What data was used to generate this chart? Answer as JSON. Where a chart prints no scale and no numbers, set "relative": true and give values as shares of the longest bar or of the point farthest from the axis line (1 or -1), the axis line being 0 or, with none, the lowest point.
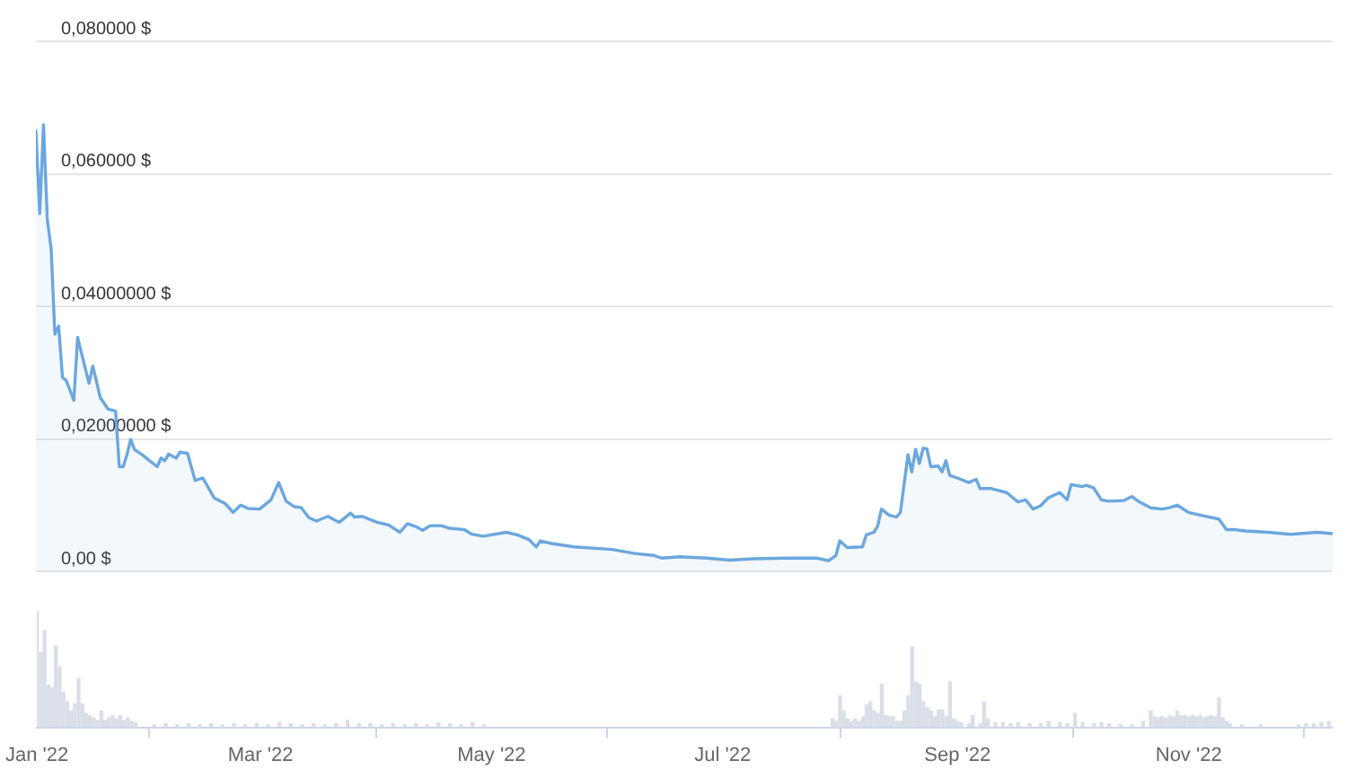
{
  "chart_data": [
    {
      "type": "area",
      "color": "#6ba7de",
      "x": [
        "2022-01-01",
        "2022-01-02",
        "2022-01-03",
        "2022-01-04",
        "2022-01-05",
        "2022-01-06",
        "2022-01-07",
        "2022-01-08",
        "2022-01-09",
        "2022-01-11",
        "2022-01-12",
        "2022-01-15",
        "2022-01-16",
        "2022-01-18",
        "2022-01-20",
        "2022-01-22",
        "2022-01-23",
        "2022-01-24",
        "2022-01-25",
        "2022-01-26",
        "2022-01-27",
        "2022-01-29",
        "2022-02-02",
        "2022-02-03",
        "2022-02-04",
        "2022-02-05",
        "2022-02-07",
        "2022-02-08",
        "2022-02-10",
        "2022-02-12",
        "2022-02-14",
        "2022-02-17",
        "2022-02-20",
        "2022-02-22",
        "2022-02-24",
        "2022-02-26",
        "2022-03-01",
        "2022-03-04",
        "2022-03-06",
        "2022-03-08",
        "2022-03-10",
        "2022-03-12",
        "2022-03-14",
        "2022-03-16",
        "2022-03-19",
        "2022-03-22",
        "2022-03-25",
        "2022-03-26",
        "2022-03-28",
        "2022-04-01",
        "2022-04-04",
        "2022-04-07",
        "2022-04-09",
        "2022-04-11",
        "2022-04-13",
        "2022-04-15",
        "2022-04-18",
        "2022-04-20",
        "2022-04-24",
        "2022-04-26",
        "2022-04-29",
        "2022-05-05",
        "2022-05-08",
        "2022-05-11",
        "2022-05-13",
        "2022-05-14",
        "2022-05-17",
        "2022-05-23",
        "2022-06-02",
        "2022-06-08",
        "2022-06-13",
        "2022-06-15",
        "2022-06-20",
        "2022-06-27",
        "2022-07-03",
        "2022-07-09",
        "2022-07-18",
        "2022-07-26",
        "2022-07-29",
        "2022-07-31",
        "2022-08-01",
        "2022-08-03",
        "2022-08-07",
        "2022-08-08",
        "2022-08-10",
        "2022-08-11",
        "2022-08-12",
        "2022-08-14",
        "2022-08-16",
        "2022-08-17",
        "2022-08-19",
        "2022-08-20",
        "2022-08-21",
        "2022-08-22",
        "2022-08-23",
        "2022-08-24",
        "2022-08-25",
        "2022-08-27",
        "2022-08-28",
        "2022-08-29",
        "2022-08-30",
        "2022-09-01",
        "2022-09-04",
        "2022-09-06",
        "2022-09-07",
        "2022-09-10",
        "2022-09-14",
        "2022-09-17",
        "2022-09-19",
        "2022-09-21",
        "2022-09-23",
        "2022-09-25",
        "2022-09-28",
        "2022-09-30",
        "2022-10-01",
        "2022-10-04",
        "2022-10-05",
        "2022-10-07",
        "2022-10-09",
        "2022-10-11",
        "2022-10-15",
        "2022-10-17",
        "2022-10-19",
        "2022-10-22",
        "2022-10-25",
        "2022-10-27",
        "2022-10-29",
        "2022-11-01",
        "2022-11-04",
        "2022-11-09",
        "2022-11-11",
        "2022-11-13",
        "2022-11-16",
        "2022-11-22",
        "2022-11-28",
        "2022-12-05",
        "2022-12-09"
      ],
      "values": [
        0.0665,
        0.054,
        0.0674,
        0.0531,
        0.0488,
        0.0358,
        0.037,
        0.0293,
        0.0288,
        0.0258,
        0.0353,
        0.0284,
        0.031,
        0.0262,
        0.0245,
        0.0242,
        0.0158,
        0.0158,
        0.0176,
        0.0199,
        0.0184,
        0.0176,
        0.0158,
        0.0171,
        0.0167,
        0.0177,
        0.0171,
        0.018,
        0.0178,
        0.0137,
        0.0141,
        0.0111,
        0.0102,
        0.0089,
        0.01,
        0.0095,
        0.0094,
        0.0108,
        0.0134,
        0.0106,
        0.0098,
        0.0096,
        0.0081,
        0.0076,
        0.0083,
        0.0074,
        0.0088,
        0.0082,
        0.0083,
        0.0074,
        0.007,
        0.0059,
        0.0072,
        0.0068,
        0.0062,
        0.0069,
        0.0069,
        0.0065,
        0.0063,
        0.0056,
        0.0053,
        0.0059,
        0.0055,
        0.0048,
        0.0037,
        0.0046,
        0.0042,
        0.0037,
        0.0033,
        0.0027,
        0.0024,
        0.002,
        0.0022,
        0.002,
        0.0017,
        0.0019,
        0.002,
        0.002,
        0.0016,
        0.0024,
        0.0046,
        0.0036,
        0.0037,
        0.0055,
        0.0059,
        0.0068,
        0.0094,
        0.0085,
        0.0082,
        0.0089,
        0.0176,
        0.015,
        0.0184,
        0.0163,
        0.0186,
        0.0185,
        0.0158,
        0.0159,
        0.015,
        0.0167,
        0.0145,
        0.0141,
        0.0134,
        0.0139,
        0.0125,
        0.0125,
        0.0119,
        0.0105,
        0.0108,
        0.0094,
        0.0099,
        0.0111,
        0.0119,
        0.0108,
        0.0131,
        0.0128,
        0.013,
        0.0126,
        0.0108,
        0.0106,
        0.0107,
        0.0113,
        0.0105,
        0.0096,
        0.0094,
        0.0096,
        0.01,
        0.0089,
        0.0085,
        0.0079,
        0.0063,
        0.0063,
        0.0061,
        0.0059,
        0.0056,
        0.0059,
        0.0057
      ],
      "xlim": [
        "2022-01-01",
        "2022-12-09"
      ],
      "ylim": [
        0,
        0.08
      ],
      "yticks": [
        {
          "value": 0,
          "label": "0,00 $"
        },
        {
          "value": 0.02,
          "label": "0,02000000 $"
        },
        {
          "value": 0.04,
          "label": "0,04000000 $"
        },
        {
          "value": 0.06,
          "label": "0,060000 $"
        },
        {
          "value": 0.08,
          "label": "0,080000 $"
        }
      ],
      "grid": "y",
      "tick_labels": "y"
    },
    {
      "type": "bar",
      "color": "#d9dee8",
      "relative": true,
      "x": [
        "2022-01-01",
        "2022-01-02",
        "2022-01-03",
        "2022-01-04",
        "2022-01-05",
        "2022-01-06",
        "2022-01-07",
        "2022-01-08",
        "2022-01-09",
        "2022-01-10",
        "2022-01-11",
        "2022-01-12",
        "2022-01-13",
        "2022-01-14",
        "2022-01-15",
        "2022-01-16",
        "2022-01-17",
        "2022-01-18",
        "2022-01-19",
        "2022-01-20",
        "2022-01-21",
        "2022-01-22",
        "2022-01-23",
        "2022-01-24",
        "2022-01-25",
        "2022-01-26",
        "2022-01-27",
        "2022-02-01",
        "2022-02-04",
        "2022-02-07",
        "2022-02-10",
        "2022-02-13",
        "2022-02-16",
        "2022-02-19",
        "2022-02-22",
        "2022-02-25",
        "2022-02-28",
        "2022-03-03",
        "2022-03-06",
        "2022-03-09",
        "2022-03-12",
        "2022-03-15",
        "2022-03-18",
        "2022-03-21",
        "2022-03-24",
        "2022-03-27",
        "2022-03-30",
        "2022-04-02",
        "2022-04-05",
        "2022-04-08",
        "2022-04-11",
        "2022-04-14",
        "2022-04-17",
        "2022-04-20",
        "2022-04-23",
        "2022-04-26",
        "2022-04-29",
        "2022-07-30",
        "2022-07-31",
        "2022-08-01",
        "2022-08-02",
        "2022-08-03",
        "2022-08-04",
        "2022-08-05",
        "2022-08-06",
        "2022-08-07",
        "2022-08-08",
        "2022-08-09",
        "2022-08-10",
        "2022-08-11",
        "2022-08-12",
        "2022-08-13",
        "2022-08-14",
        "2022-08-15",
        "2022-08-16",
        "2022-08-17",
        "2022-08-18",
        "2022-08-19",
        "2022-08-20",
        "2022-08-21",
        "2022-08-22",
        "2022-08-23",
        "2022-08-24",
        "2022-08-25",
        "2022-08-26",
        "2022-08-27",
        "2022-08-28",
        "2022-08-29",
        "2022-08-30",
        "2022-08-31",
        "2022-09-01",
        "2022-09-02",
        "2022-09-04",
        "2022-09-05",
        "2022-09-07",
        "2022-09-08",
        "2022-09-09",
        "2022-09-11",
        "2022-09-13",
        "2022-09-15",
        "2022-09-17",
        "2022-09-20",
        "2022-09-23",
        "2022-09-25",
        "2022-09-28",
        "2022-09-30",
        "2022-10-02",
        "2022-10-04",
        "2022-10-07",
        "2022-10-09",
        "2022-10-11",
        "2022-10-14",
        "2022-10-17",
        "2022-10-20",
        "2022-10-22",
        "2022-10-23",
        "2022-10-24",
        "2022-10-25",
        "2022-10-26",
        "2022-10-27",
        "2022-10-28",
        "2022-10-29",
        "2022-10-30",
        "2022-10-31",
        "2022-11-01",
        "2022-11-02",
        "2022-11-03",
        "2022-11-04",
        "2022-11-05",
        "2022-11-06",
        "2022-11-07",
        "2022-11-08",
        "2022-11-09",
        "2022-11-10",
        "2022-11-11",
        "2022-11-12",
        "2022-11-15",
        "2022-11-20",
        "2022-11-30",
        "2022-12-02",
        "2022-12-04",
        "2022-12-06",
        "2022-12-08"
      ],
      "values": [
        1.0,
        0.64,
        0.83,
        0.36,
        0.34,
        0.7,
        0.52,
        0.3,
        0.22,
        0.14,
        0.2,
        0.42,
        0.2,
        0.12,
        0.1,
        0.08,
        0.06,
        0.14,
        0.06,
        0.08,
        0.1,
        0.07,
        0.1,
        0.06,
        0.08,
        0.05,
        0.04,
        0.02,
        0.03,
        0.02,
        0.03,
        0.02,
        0.03,
        0.02,
        0.03,
        0.02,
        0.03,
        0.02,
        0.04,
        0.03,
        0.02,
        0.03,
        0.02,
        0.03,
        0.06,
        0.03,
        0.03,
        0.02,
        0.03,
        0.02,
        0.03,
        0.02,
        0.04,
        0.03,
        0.02,
        0.04,
        0.02,
        0.07,
        0.05,
        0.27,
        0.14,
        0.07,
        0.05,
        0.07,
        0.05,
        0.09,
        0.19,
        0.22,
        0.14,
        0.12,
        0.37,
        0.1,
        0.09,
        0.09,
        0.05,
        0.05,
        0.14,
        0.27,
        0.69,
        0.39,
        0.37,
        0.22,
        0.17,
        0.14,
        0.09,
        0.15,
        0.15,
        0.09,
        0.39,
        0.07,
        0.05,
        0.04,
        0.03,
        0.1,
        0.03,
        0.22,
        0.07,
        0.04,
        0.04,
        0.03,
        0.04,
        0.03,
        0.03,
        0.05,
        0.04,
        0.03,
        0.12,
        0.04,
        0.03,
        0.04,
        0.03,
        0.02,
        0.02,
        0.05,
        0.14,
        0.09,
        0.08,
        0.09,
        0.08,
        0.1,
        0.09,
        0.14,
        0.1,
        0.1,
        0.09,
        0.1,
        0.09,
        0.1,
        0.08,
        0.09,
        0.1,
        0.09,
        0.25,
        0.08,
        0.05,
        0.03,
        0.02,
        0.02,
        0.02,
        0.03,
        0.03,
        0.04,
        0.05
      ],
      "xlim": [
        "2022-01-01",
        "2022-12-09"
      ],
      "xticks": [
        {
          "value": "2022-01-01",
          "label": "Jan '22"
        },
        {
          "value": "2022-03-01",
          "label": "Mar '22"
        },
        {
          "value": "2022-05-01",
          "label": "May '22"
        },
        {
          "value": "2022-07-01",
          "label": "Jul '22"
        },
        {
          "value": "2022-09-01",
          "label": "Sep '22"
        },
        {
          "value": "2022-11-01",
          "label": "Nov '22"
        }
      ],
      "tick_labels": "x"
    }
  ]
}
